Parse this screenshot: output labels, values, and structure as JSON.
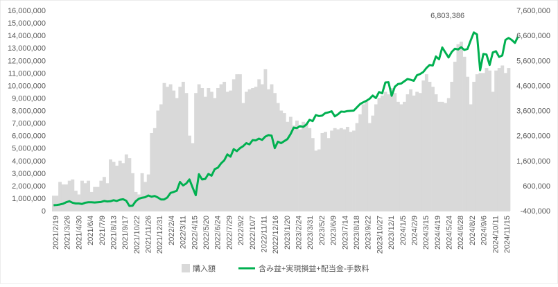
{
  "chart_data": {
    "type": "bar+line",
    "title": "",
    "y_left": {
      "min": 0,
      "max": 16000000,
      "step": 1000000,
      "ticks": [
        "0",
        "1,000,000",
        "2,000,000",
        "3,000,000",
        "4,000,000",
        "5,000,000",
        "6,000,000",
        "7,000,000",
        "8,000,000",
        "9,000,000",
        "10,000,000",
        "11,000,000",
        "12,000,000",
        "13,000,000",
        "14,000,000",
        "15,000,000",
        "16,000,000"
      ]
    },
    "y_right": {
      "min": -400000,
      "max": 7600000,
      "step": 1000000,
      "ticks": [
        "-400,000",
        "600,000",
        "1,600,000",
        "2,600,000",
        "3,600,000",
        "4,600,000",
        "5,600,000",
        "6,600,000",
        "7,600,000"
      ]
    },
    "x_labels": [
      "2021/2/19",
      "2021/3/26",
      "2021/4/30",
      "2021/6/4",
      "2021/7/9",
      "2021/8/13",
      "2021/9/17",
      "2021/10/22",
      "2021/11/26",
      "2021/12/31",
      "2022/2/4",
      "2022/3/11",
      "2022/4/15",
      "2022/5/20",
      "2022/6/24",
      "2022/7/29",
      "2022/9/2",
      "2022/10/7",
      "2022/11/11",
      "2022/12/16",
      "2023/1/20",
      "2023/2/24",
      "2023/3/31",
      "2023/5/2",
      "2023/6/9",
      "2023/7/14",
      "2023/8/18",
      "2023/9/22",
      "2023/10/27",
      "2023/12/1",
      "2024/1/5",
      "2024/2/9",
      "2024/3/15",
      "2024/4/19",
      "2024/5/24",
      "2024/6/28",
      "2024/8/2",
      "2024/9/6",
      "2024/10/11",
      "2024/11/15"
    ],
    "series": [
      {
        "name": "購入額",
        "axis": "left",
        "color": "#d9d9d9",
        "values": [
          1200000,
          1200000,
          2300000,
          2100000,
          2100000,
          2400000,
          2500000,
          1600000,
          1300000,
          2400000,
          2200000,
          2400000,
          1500000,
          1900000,
          1900000,
          2400000,
          2700000,
          2200000,
          4100000,
          3900000,
          3600000,
          4000000,
          3800000,
          4500000,
          4200000,
          3000000,
          1500000,
          1300000,
          3000000,
          2300000,
          2900000,
          6200000,
          6600000,
          8000000,
          8500000,
          10200000,
          9900000,
          10100000,
          9600000,
          9000000,
          9900000,
          10300000,
          9400000,
          6000000,
          5400000,
          9400000,
          10100000,
          9800000,
          9100000,
          9800000,
          9500000,
          9000000,
          9800000,
          10100000,
          10300000,
          9500000,
          9600000,
          10500000,
          10900000,
          10900000,
          8600000,
          9500000,
          9700000,
          9800000,
          9900000,
          10500000,
          10100000,
          11300000,
          9700000,
          10100000,
          9400000,
          8600000,
          8000000,
          7800000,
          7100000,
          7500000,
          6800000,
          7200000,
          6500000,
          7100000,
          7000000,
          6600000,
          5800000,
          4800000,
          4900000,
          6200000,
          6300000,
          5800000,
          6400000,
          6600000,
          6500000,
          6600000,
          6500000,
          6700000,
          6300000,
          6400000,
          7000000,
          7700000,
          8500000,
          8800000,
          7000000,
          7600000,
          8500000,
          9000000,
          9200000,
          9500000,
          9300000,
          9800000,
          9400000,
          8700000,
          8500000,
          8700000,
          9300000,
          9700000,
          9200000,
          9500000,
          9400000,
          10400000,
          10900000,
          10300000,
          9900000,
          9300000,
          8700000,
          8700000,
          8600000,
          9000000,
          10300000,
          11900000,
          13300000,
          13500000,
          12300000,
          10700000,
          8500000,
          10300000,
          10900000,
          11000000,
          11000000,
          11400000,
          11200000,
          9500000,
          11200000,
          11400000,
          11600000,
          11000000,
          11400000
        ]
      },
      {
        "name": "含み益+実現損益+配当金-手数料",
        "axis": "right",
        "color": "#00b050",
        "values": [
          -180000,
          -170000,
          -150000,
          -120000,
          -60000,
          -20000,
          -80000,
          -110000,
          -110000,
          -130000,
          -80000,
          -60000,
          -60000,
          -70000,
          -60000,
          -50000,
          -10000,
          -30000,
          -20000,
          20000,
          -10000,
          40000,
          60000,
          0,
          -210000,
          -200000,
          -20000,
          80000,
          120000,
          140000,
          210000,
          160000,
          190000,
          130000,
          50000,
          50000,
          130000,
          310000,
          350000,
          400000,
          750000,
          610000,
          690000,
          850000,
          530000,
          220000,
          1060000,
          850000,
          870000,
          1070000,
          1000000,
          1260000,
          1320000,
          1490000,
          1610000,
          1850000,
          1760000,
          2060000,
          1980000,
          2100000,
          2180000,
          2300000,
          2250000,
          2420000,
          2410000,
          2480000,
          2430000,
          2560000,
          2620000,
          2600000,
          2100000,
          2360000,
          2300000,
          2380000,
          2460000,
          2660000,
          2920000,
          2900000,
          2980000,
          2950000,
          3040000,
          3230000,
          3180000,
          3420000,
          3380000,
          3400000,
          3500000,
          3530000,
          3570000,
          3370000,
          3450000,
          3560000,
          3550000,
          3580000,
          3590000,
          3600000,
          3730000,
          3860000,
          3930000,
          3990000,
          4070000,
          4200000,
          4100000,
          4340000,
          4290000,
          4720000,
          4730000,
          4190000,
          4550000,
          4660000,
          4680000,
          4770000,
          4860000,
          4830000,
          4790000,
          5010000,
          5060000,
          5140000,
          5300000,
          5420000,
          5400000,
          5760000,
          5650000,
          6120000,
          5920000,
          5720000,
          5940000,
          6070000,
          6040000,
          6130000,
          6020000,
          6060000,
          6400000,
          6720000,
          6640000,
          5210000,
          5860000,
          5840000,
          5420000,
          5920000,
          5970000,
          5740000,
          5800000,
          6420000,
          6500000,
          6420000,
          6300000,
          6560000
        ],
        "annotations": [
          {
            "label": "6,803,386",
            "value": 6803386
          }
        ]
      }
    ],
    "legend": {
      "position": "bottom",
      "items": [
        "購入額",
        "含み益+実現損益+配当金-手数料"
      ]
    },
    "grid": false
  }
}
